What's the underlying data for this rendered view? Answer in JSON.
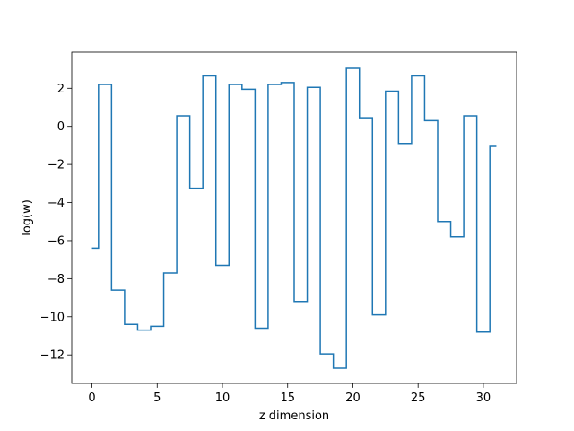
{
  "chart_data": {
    "type": "line",
    "drawstyle": "steps-mid",
    "title": "",
    "xlabel": "z dimension",
    "ylabel": "log(w)",
    "xlim": [
      -1.55,
      32.55
    ],
    "ylim": [
      -13.5,
      3.9
    ],
    "xticks": [
      0,
      5,
      10,
      15,
      20,
      25,
      30
    ],
    "yticks": [
      -12,
      -10,
      -8,
      -6,
      -4,
      -2,
      0,
      2
    ],
    "grid": false,
    "color": "#1f77b4",
    "series": [
      {
        "x": [
          0,
          1,
          2,
          3,
          4,
          5,
          6,
          7,
          8,
          9,
          10,
          11,
          12,
          13,
          14,
          15,
          16,
          17,
          18,
          19,
          20,
          21,
          22,
          23,
          24,
          25,
          26,
          27,
          28,
          29,
          30,
          31
        ],
        "values": [
          -6.4,
          2.2,
          -8.6,
          -10.4,
          -10.7,
          -10.5,
          -7.7,
          0.55,
          -3.25,
          2.65,
          -7.3,
          2.2,
          1.95,
          -10.6,
          2.2,
          2.3,
          -9.2,
          2.05,
          -11.95,
          -12.7,
          3.05,
          0.45,
          -9.9,
          1.85,
          -0.9,
          2.65,
          0.3,
          -5.0,
          -5.8,
          0.55,
          -10.8,
          -1.05
        ]
      }
    ]
  }
}
